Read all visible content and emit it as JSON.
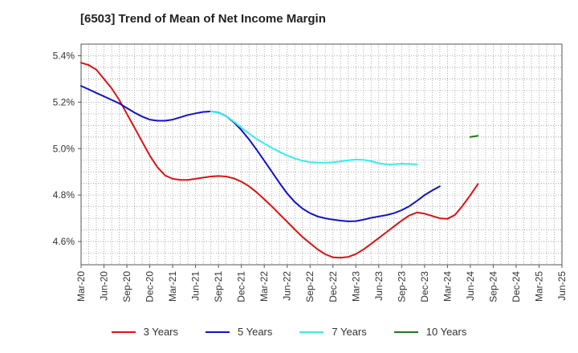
{
  "chart_data": {
    "type": "line",
    "title": "[6503]  Trend of Mean of Net Income Margin",
    "xlabel": "",
    "ylabel": "",
    "x_ticks": [
      "Mar-20",
      "Jun-20",
      "Sep-20",
      "Dec-20",
      "Mar-21",
      "Jun-21",
      "Sep-21",
      "Dec-21",
      "Mar-22",
      "Jun-22",
      "Sep-22",
      "Dec-22",
      "Mar-23",
      "Jun-23",
      "Sep-23",
      "Dec-23",
      "Mar-24",
      "Jun-24",
      "Sep-24",
      "Dec-24",
      "Mar-25",
      "Jun-25"
    ],
    "y_ticks": [
      "4.6%",
      "4.8%",
      "5.0%",
      "5.2%",
      "5.4%"
    ],
    "y_tick_values": [
      4.6,
      4.8,
      5.0,
      5.2,
      5.4
    ],
    "ylim": [
      4.5,
      5.45
    ],
    "grid": true,
    "legend_position": "bottom",
    "series": [
      {
        "name": "3 Years",
        "color": "#dd1111",
        "start_index": 0,
        "values": [
          5.37,
          5.36,
          5.34,
          5.3,
          5.26,
          5.21,
          5.15,
          5.09,
          5.03,
          4.97,
          4.92,
          4.885,
          4.87,
          4.865,
          4.865,
          4.87,
          4.875,
          4.88,
          4.882,
          4.88,
          4.872,
          4.858,
          4.838,
          4.812,
          4.782,
          4.751,
          4.718,
          4.685,
          4.652,
          4.62,
          4.593,
          4.566,
          4.545,
          4.532,
          4.53,
          4.534,
          4.546,
          4.566,
          4.59,
          4.615,
          4.64,
          4.665,
          4.69,
          4.712,
          4.725,
          4.72,
          4.71,
          4.7,
          4.698,
          4.715,
          4.755,
          4.8,
          4.848
        ]
      },
      {
        "name": "5 Years",
        "color": "#1111cc",
        "start_index": 0,
        "values": [
          5.27,
          5.255,
          5.24,
          5.225,
          5.21,
          5.195,
          5.175,
          5.155,
          5.138,
          5.125,
          5.12,
          5.12,
          5.125,
          5.135,
          5.145,
          5.152,
          5.158,
          5.16,
          5.156,
          5.14,
          5.114,
          5.08,
          5.04,
          4.995,
          4.948,
          4.9,
          4.852,
          4.807,
          4.77,
          4.742,
          4.722,
          4.708,
          4.7,
          4.694,
          4.69,
          4.687,
          4.688,
          4.694,
          4.702,
          4.708,
          4.714,
          4.722,
          4.735,
          4.752,
          4.775,
          4.8,
          4.82,
          4.838
        ]
      },
      {
        "name": "7 Years",
        "color": "#33eeee",
        "start_index": 17,
        "values": [
          5.16,
          5.155,
          5.14,
          5.117,
          5.09,
          5.065,
          5.042,
          5.022,
          5.003,
          4.986,
          4.971,
          4.958,
          4.948,
          4.942,
          4.94,
          4.939,
          4.941,
          4.945,
          4.95,
          4.953,
          4.952,
          4.946,
          4.937,
          4.932,
          4.933,
          4.935,
          4.934,
          4.932
        ]
      },
      {
        "name": "10 Years",
        "color": "#1e7a1e",
        "start_index": 51,
        "values": [
          5.05,
          5.055
        ]
      }
    ]
  }
}
